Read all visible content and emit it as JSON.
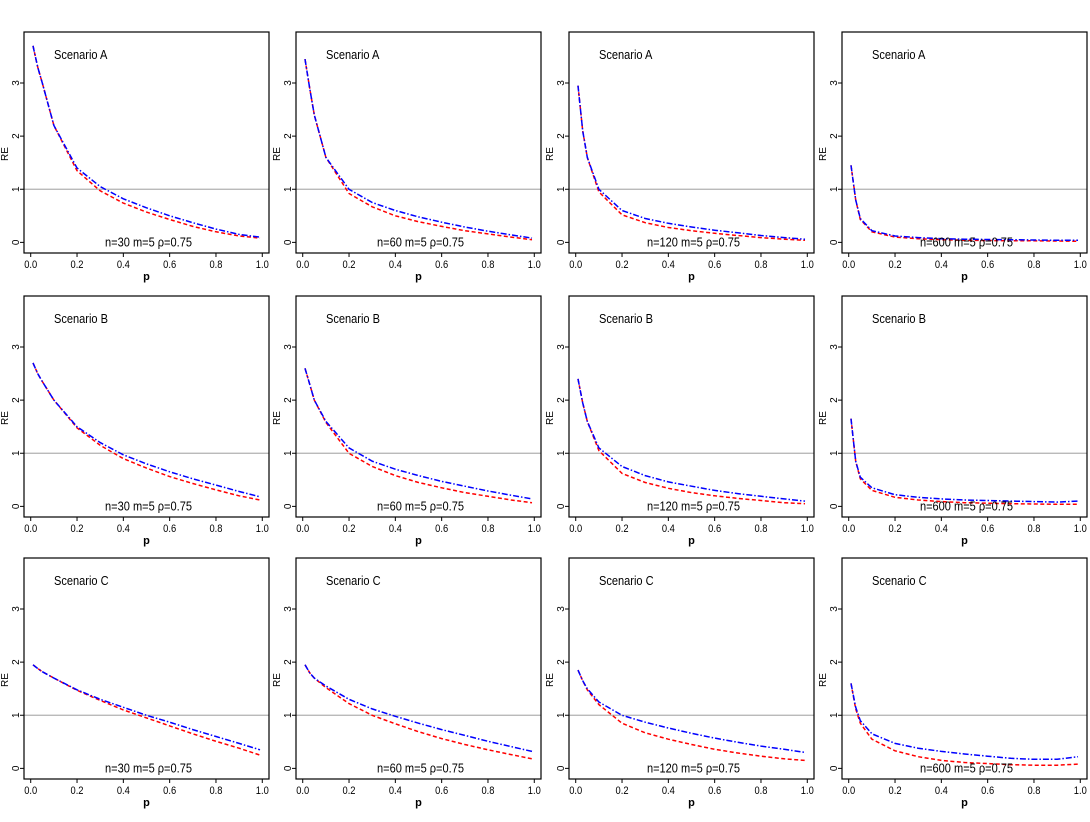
{
  "chart_data": {
    "type": "line",
    "layout": "3 rows x 4 columns grid",
    "grid": false,
    "reference_line": {
      "y": 1,
      "color": "#b0b0b0"
    },
    "series_styles": [
      {
        "color": "#0000ff",
        "dash": "dash-dot"
      },
      {
        "color": "#ff0000",
        "dash": "dashed"
      }
    ],
    "x": [
      0.01,
      0.03,
      0.05,
      0.1,
      0.2,
      0.3,
      0.4,
      0.5,
      0.6,
      0.7,
      0.8,
      0.9,
      0.99
    ],
    "xlabel": "p",
    "ylabel": "RE",
    "xlim": [
      -0.029,
      1.029
    ],
    "ylim": [
      -0.2,
      3.96
    ],
    "xticks": [
      "0.0",
      "0.2",
      "0.4",
      "0.6",
      "0.8",
      "1.0"
    ],
    "yticks": [
      "0",
      "1",
      "2",
      "3"
    ],
    "panels": [
      {
        "title": "Scenario A",
        "annotation": "n=30 m=5 ρ=0.75",
        "series": [
          {
            "values": [
              3.7,
              3.3,
              3.0,
              2.2,
              1.4,
              1.05,
              0.82,
              0.65,
              0.5,
              0.37,
              0.25,
              0.15,
              0.1
            ]
          },
          {
            "values": [
              3.7,
              3.3,
              3.0,
              2.2,
              1.35,
              0.97,
              0.74,
              0.57,
              0.43,
              0.3,
              0.2,
              0.12,
              0.08
            ]
          }
        ]
      },
      {
        "title": "Scenario A",
        "annotation": "n=60 m=5 ρ=0.75",
        "series": [
          {
            "values": [
              3.45,
              2.9,
              2.4,
              1.6,
              1.0,
              0.75,
              0.6,
              0.48,
              0.38,
              0.29,
              0.21,
              0.14,
              0.08
            ]
          },
          {
            "values": [
              3.45,
              2.9,
              2.4,
              1.6,
              0.92,
              0.67,
              0.5,
              0.39,
              0.3,
              0.22,
              0.16,
              0.1,
              0.05
            ]
          }
        ]
      },
      {
        "title": "Scenario A",
        "annotation": "n=120 m=5 ρ=0.75",
        "series": [
          {
            "values": [
              2.95,
              2.1,
              1.6,
              1.0,
              0.6,
              0.45,
              0.36,
              0.29,
              0.23,
              0.18,
              0.13,
              0.09,
              0.06
            ]
          },
          {
            "values": [
              2.95,
              2.1,
              1.6,
              0.95,
              0.52,
              0.37,
              0.28,
              0.22,
              0.17,
              0.13,
              0.09,
              0.06,
              0.04
            ]
          }
        ]
      },
      {
        "title": "Scenario A",
        "annotation": "n=600 m=5 ρ=0.75",
        "series": [
          {
            "values": [
              1.45,
              0.8,
              0.45,
              0.22,
              0.12,
              0.09,
              0.07,
              0.06,
              0.055,
              0.05,
              0.045,
              0.04,
              0.04
            ]
          },
          {
            "values": [
              1.45,
              0.8,
              0.43,
              0.2,
              0.1,
              0.07,
              0.05,
              0.04,
              0.035,
              0.03,
              0.03,
              0.025,
              0.02
            ]
          }
        ]
      },
      {
        "title": "Scenario B",
        "annotation": "n=30 m=5 ρ=0.75",
        "series": [
          {
            "values": [
              2.7,
              2.5,
              2.35,
              2.0,
              1.5,
              1.2,
              0.97,
              0.8,
              0.65,
              0.52,
              0.4,
              0.28,
              0.18
            ]
          },
          {
            "values": [
              2.7,
              2.5,
              2.35,
              2.0,
              1.48,
              1.15,
              0.9,
              0.72,
              0.56,
              0.43,
              0.31,
              0.2,
              0.12
            ]
          }
        ]
      },
      {
        "title": "Scenario B",
        "annotation": "n=60 m=5 ρ=0.75",
        "series": [
          {
            "values": [
              2.6,
              2.3,
              2.0,
              1.6,
              1.1,
              0.85,
              0.7,
              0.58,
              0.47,
              0.38,
              0.29,
              0.21,
              0.14
            ]
          },
          {
            "values": [
              2.6,
              2.3,
              2.0,
              1.58,
              1.0,
              0.75,
              0.58,
              0.45,
              0.35,
              0.26,
              0.19,
              0.12,
              0.07
            ]
          }
        ]
      },
      {
        "title": "Scenario B",
        "annotation": "n=120 m=5 ρ=0.75",
        "series": [
          {
            "values": [
              2.4,
              1.95,
              1.6,
              1.1,
              0.75,
              0.58,
              0.46,
              0.38,
              0.3,
              0.24,
              0.19,
              0.14,
              0.1
            ]
          },
          {
            "values": [
              2.4,
              1.95,
              1.6,
              1.05,
              0.62,
              0.45,
              0.34,
              0.26,
              0.2,
              0.15,
              0.11,
              0.07,
              0.05
            ]
          }
        ]
      },
      {
        "title": "Scenario B",
        "annotation": "n=600 m=5 ρ=0.75",
        "series": [
          {
            "values": [
              1.65,
              0.85,
              0.55,
              0.35,
              0.22,
              0.17,
              0.14,
              0.12,
              0.11,
              0.1,
              0.09,
              0.08,
              0.1
            ]
          },
          {
            "values": [
              1.65,
              0.85,
              0.52,
              0.3,
              0.17,
              0.12,
              0.09,
              0.07,
              0.06,
              0.05,
              0.045,
              0.04,
              0.04
            ]
          }
        ]
      },
      {
        "title": "Scenario C",
        "annotation": "n=30 m=5 ρ=0.75",
        "series": [
          {
            "values": [
              1.95,
              1.88,
              1.82,
              1.7,
              1.48,
              1.3,
              1.15,
              1.0,
              0.87,
              0.73,
              0.6,
              0.47,
              0.35
            ]
          },
          {
            "values": [
              1.95,
              1.88,
              1.82,
              1.7,
              1.47,
              1.28,
              1.1,
              0.95,
              0.8,
              0.65,
              0.51,
              0.38,
              0.25
            ]
          }
        ]
      },
      {
        "title": "Scenario C",
        "annotation": "n=60 m=5 ρ=0.75",
        "series": [
          {
            "values": [
              1.95,
              1.8,
              1.7,
              1.55,
              1.3,
              1.12,
              0.98,
              0.85,
              0.73,
              0.62,
              0.51,
              0.41,
              0.32
            ]
          },
          {
            "values": [
              1.95,
              1.8,
              1.7,
              1.52,
              1.22,
              1.0,
              0.84,
              0.69,
              0.56,
              0.45,
              0.35,
              0.26,
              0.18
            ]
          }
        ]
      },
      {
        "title": "Scenario C",
        "annotation": "n=120 m=5 ρ=0.75",
        "series": [
          {
            "values": [
              1.85,
              1.65,
              1.5,
              1.25,
              1.0,
              0.87,
              0.76,
              0.66,
              0.57,
              0.49,
              0.42,
              0.36,
              0.3
            ]
          },
          {
            "values": [
              1.85,
              1.65,
              1.48,
              1.2,
              0.85,
              0.67,
              0.55,
              0.45,
              0.36,
              0.29,
              0.23,
              0.18,
              0.15
            ]
          }
        ]
      },
      {
        "title": "Scenario C",
        "annotation": "n=600 m=5 ρ=0.75",
        "series": [
          {
            "values": [
              1.6,
              1.15,
              0.9,
              0.65,
              0.47,
              0.38,
              0.32,
              0.27,
              0.23,
              0.19,
              0.17,
              0.17,
              0.22
            ]
          },
          {
            "values": [
              1.6,
              1.12,
              0.85,
              0.55,
              0.33,
              0.22,
              0.15,
              0.11,
              0.09,
              0.07,
              0.06,
              0.06,
              0.08
            ]
          }
        ]
      }
    ]
  }
}
